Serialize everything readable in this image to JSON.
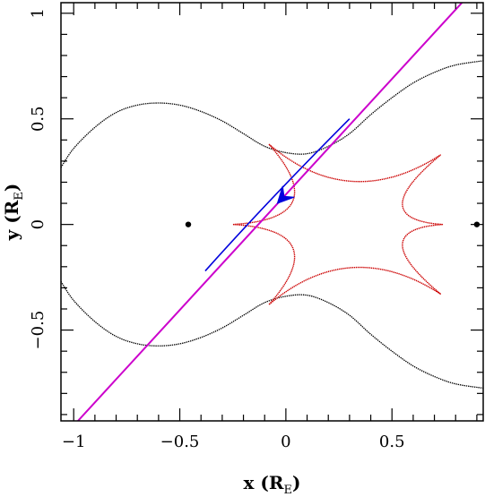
{
  "chart_data": {
    "type": "line",
    "title": "",
    "xlabel": {
      "prefix": "x (R",
      "sub": "E",
      "suffix": ")"
    },
    "ylabel": {
      "prefix": "y (R",
      "sub": "E",
      "suffix": ")"
    },
    "xlim": [
      -1.06,
      0.93
    ],
    "ylim": [
      -0.93,
      1.05
    ],
    "xticks_major": [
      -1,
      -0.5,
      0,
      0.5
    ],
    "yticks_major": [
      -0.5,
      0,
      0.5,
      1
    ],
    "xtick_labels": [
      "−1",
      "−0.5",
      "0",
      "0.5"
    ],
    "ytick_labels": [
      "−0.5",
      "0",
      "0.5",
      "1"
    ],
    "minor_tick_step": 0.1,
    "grid": false,
    "legend": "none",
    "lens_positions": [
      {
        "x": -0.46,
        "y": 0.0
      },
      {
        "x": 0.9,
        "y": 0.0
      }
    ],
    "critical_curve_upper": {
      "color": "#000000",
      "points": [
        [
          -1.06,
          0.27
        ],
        [
          -1.0,
          0.36
        ],
        [
          -0.9,
          0.46
        ],
        [
          -0.8,
          0.53
        ],
        [
          -0.7,
          0.565
        ],
        [
          -0.6,
          0.575
        ],
        [
          -0.5,
          0.565
        ],
        [
          -0.4,
          0.535
        ],
        [
          -0.3,
          0.49
        ],
        [
          -0.2,
          0.43
        ],
        [
          -0.1,
          0.37
        ],
        [
          0.0,
          0.34
        ],
        [
          0.1,
          0.335
        ],
        [
          0.2,
          0.37
        ],
        [
          0.3,
          0.43
        ],
        [
          0.4,
          0.52
        ],
        [
          0.5,
          0.6
        ],
        [
          0.6,
          0.67
        ],
        [
          0.7,
          0.72
        ],
        [
          0.8,
          0.755
        ],
        [
          0.93,
          0.775
        ]
      ]
    },
    "caustic": {
      "color": "#cc0000",
      "cusps": [
        [
          -0.08,
          0.38
        ],
        [
          0.73,
          0.33
        ],
        [
          0.74,
          0.0
        ],
        [
          0.73,
          -0.33
        ],
        [
          -0.08,
          -0.38
        ],
        [
          -0.25,
          0.0
        ]
      ]
    },
    "source_trajectory": {
      "color": "#cc00cc",
      "points": [
        [
          -0.98,
          -0.93
        ],
        [
          0.83,
          1.05
        ]
      ]
    },
    "light_curve_track": {
      "color": "#0000dd",
      "start": [
        0.3,
        0.5
      ],
      "end": [
        -0.38,
        -0.22
      ],
      "arrow_at": [
        -0.04,
        0.1
      ]
    }
  }
}
